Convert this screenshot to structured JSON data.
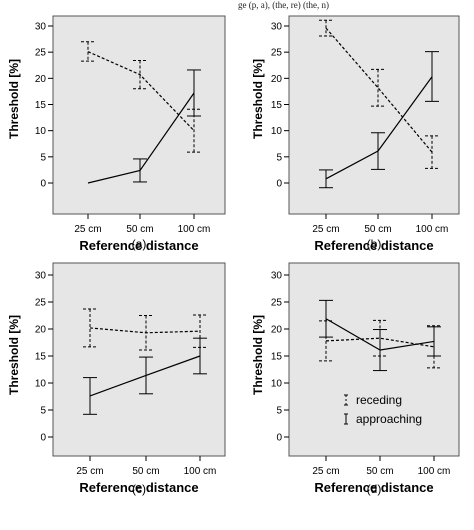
{
  "header_fragment": "ge (p, a), (the, re) (the, n) ",
  "chart_data": [
    {
      "type": "line",
      "panel": "(a)",
      "categories": [
        "25 cm",
        "50 cm",
        "100 cm"
      ],
      "xlabel": "Reference distance",
      "ylabel": "Threshold [%]",
      "yticks": [
        0,
        5,
        10,
        15,
        20,
        25,
        30
      ],
      "ylim": [
        0,
        30
      ],
      "series": [
        {
          "style": "dashed",
          "values": [
            25.1,
            20.7,
            10.0
          ],
          "err_low": [
            23.3,
            18.0,
            5.9
          ],
          "err_high": [
            27.0,
            23.4,
            14.1
          ]
        },
        {
          "style": "solid",
          "values": [
            0.0,
            2.4,
            17.2
          ],
          "err_low": [
            0.0,
            0.2,
            12.8
          ],
          "err_high": [
            0.0,
            4.6,
            21.6
          ]
        }
      ]
    },
    {
      "type": "line",
      "panel": "(b)",
      "categories": [
        "25 cm",
        "50 cm",
        "100 cm"
      ],
      "xlabel": "Reference distance",
      "ylabel": "Threshold [%]",
      "yticks": [
        0,
        5,
        10,
        15,
        20,
        25,
        30
      ],
      "ylim": [
        0,
        30
      ],
      "series": [
        {
          "style": "dashed",
          "values": [
            29.6,
            18.2,
            5.9
          ],
          "err_low": [
            28.1,
            14.7,
            2.8
          ],
          "err_high": [
            31.1,
            21.7,
            9.0
          ]
        },
        {
          "style": "solid",
          "values": [
            0.8,
            6.1,
            20.3
          ],
          "err_low": [
            -0.9,
            2.6,
            15.6
          ],
          "err_high": [
            2.5,
            9.6,
            25.1
          ]
        }
      ]
    },
    {
      "type": "line",
      "panel": "(c)",
      "categories": [
        "25 cm",
        "50 cm",
        "100 cm"
      ],
      "xlabel": "Reference distance",
      "ylabel": "Threshold [%]",
      "yticks": [
        0,
        5,
        10,
        15,
        20,
        25,
        30
      ],
      "ylim": [
        0,
        30
      ],
      "series": [
        {
          "style": "dashed",
          "values": [
            20.2,
            19.3,
            19.6
          ],
          "err_low": [
            16.7,
            16.1,
            16.6
          ],
          "err_high": [
            23.7,
            22.5,
            22.6
          ]
        },
        {
          "style": "solid",
          "values": [
            7.6,
            11.4,
            15.0
          ],
          "err_low": [
            4.2,
            8.0,
            11.7
          ],
          "err_high": [
            11.0,
            14.8,
            18.3
          ]
        }
      ]
    },
    {
      "type": "line",
      "panel": "(d)",
      "categories": [
        "25 cm",
        "50 cm",
        "100 cm"
      ],
      "xlabel": "Reference distance",
      "ylabel": "Threshold [%]",
      "yticks": [
        0,
        5,
        10,
        15,
        20,
        25,
        30
      ],
      "ylim": [
        0,
        30
      ],
      "legend": {
        "position": "bottom-center",
        "entries": [
          "receding",
          "approaching"
        ]
      },
      "series": [
        {
          "name": "receding",
          "style": "dashed",
          "values": [
            17.8,
            18.3,
            16.7
          ],
          "err_low": [
            14.1,
            15.0,
            12.8
          ],
          "err_high": [
            21.5,
            21.6,
            20.6
          ]
        },
        {
          "name": "approaching",
          "style": "solid",
          "values": [
            21.9,
            16.1,
            17.7
          ],
          "err_low": [
            18.5,
            12.3,
            15.0
          ],
          "err_high": [
            25.3,
            19.9,
            20.4
          ]
        }
      ]
    }
  ]
}
